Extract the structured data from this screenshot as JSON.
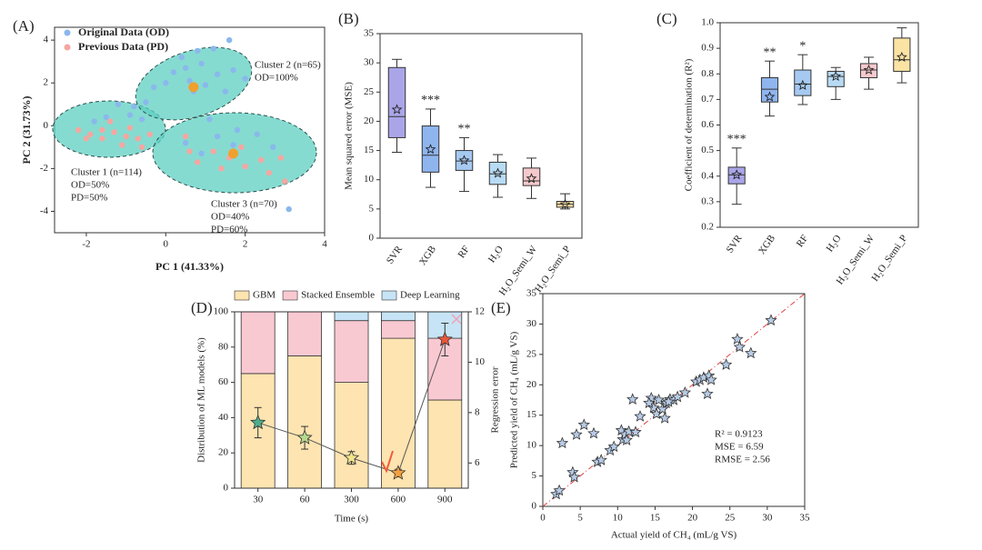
{
  "chart_data": [
    {
      "type": "scatter",
      "panel_label": "(A)",
      "xlabel": "PC 1 (41.33%)",
      "ylabel": "PC 2 (31.73%)",
      "xlim": [
        -2.8,
        4
      ],
      "ylim": [
        -5,
        4.6
      ],
      "xticks": [
        -2,
        0,
        2,
        4
      ],
      "yticks": [
        -4,
        -2,
        0,
        2,
        4
      ],
      "series": [
        {
          "name": "Original Data (OD)",
          "color": "#8ab8ec",
          "x": [
            0.4,
            0.8,
            1.2,
            1.6,
            0.2,
            0.5,
            0.9,
            1.3,
            1.7,
            2.0,
            -0.3,
            0.0,
            0.6,
            1.0,
            1.5,
            -0.8,
            -0.5,
            -1.2,
            -0.9,
            -1.5,
            -0.6,
            -1.8,
            0.5,
            0.9,
            1.3,
            1.8,
            2.3,
            2.7,
            1.1,
            3.1,
            1.7,
            0.7
          ],
          "y": [
            3.2,
            3.5,
            3.6,
            4.0,
            2.5,
            2.7,
            2.9,
            2.4,
            2.6,
            2.2,
            1.8,
            2.0,
            2.1,
            1.9,
            1.6,
            0.9,
            1.1,
            1.0,
            0.5,
            0.4,
            0.3,
            0.2,
            -0.8,
            -1.3,
            -0.5,
            -0.2,
            -0.4,
            -1.0,
            0.3,
            -3.9,
            -0.9,
            1.6
          ]
        },
        {
          "name": "Previous Data (PD)",
          "color": "#f4a7a0",
          "x": [
            -2.2,
            -1.9,
            -1.6,
            -1.3,
            -1.0,
            -0.7,
            -0.4,
            -1.4,
            -1.1,
            -1.6,
            -0.6,
            0.5,
            0.8,
            1.2,
            1.6,
            2.0,
            2.4,
            2.9,
            3.0,
            1.4,
            1.9,
            0.6,
            2.6,
            -0.9,
            -2.0
          ],
          "y": [
            -0.2,
            -0.4,
            -0.6,
            -0.3,
            -0.5,
            -0.6,
            -0.4,
            0.2,
            -0.9,
            -0.2,
            -1.0,
            -0.5,
            -1.7,
            -1.2,
            -1.5,
            -1.9,
            -1.6,
            -1.5,
            -2.6,
            -2.0,
            -1.0,
            -1.2,
            -2.2,
            -0.1,
            -0.6
          ]
        }
      ],
      "centroids": {
        "color": "#f0a030",
        "x": [
          0.7,
          1.7
        ],
        "y": [
          1.8,
          -1.3
        ]
      },
      "annotations": [
        [
          "Cluster 2 (n=65)",
          "OD=100%"
        ],
        [
          "Cluster 1 (n=114)",
          "OD=50%",
          "PD=50%"
        ],
        [
          "Cluster 3 (n=70)",
          "OD=40%",
          "PD=60%"
        ]
      ]
    },
    {
      "type": "box",
      "panel_label": "(B)",
      "ylabel": "Mean squared error (MSE)",
      "categories": [
        "SVR",
        "XGB",
        "RF",
        "H₂O",
        "H₂O_Semi_W",
        "H₂O_Semi_P"
      ],
      "colors": [
        "#aaa5e8",
        "#8fb5ef",
        "#a6c9f1",
        "#b8dbf4",
        "#f6c9cc",
        "#fbe3a4"
      ],
      "min": [
        14.7,
        8.7,
        8.0,
        7.0,
        6.8,
        5.0
      ],
      "q1": [
        17.2,
        11.3,
        11.6,
        9.2,
        9.0,
        5.3
      ],
      "median": [
        20.8,
        14.2,
        13.2,
        11.0,
        9.8,
        5.8
      ],
      "q3": [
        29.2,
        19.2,
        15.0,
        13.0,
        12.0,
        6.3
      ],
      "max": [
        30.6,
        22.1,
        17.2,
        14.3,
        13.7,
        7.6
      ],
      "mean": [
        22.0,
        15.2,
        13.3,
        11.1,
        10.2,
        5.8
      ],
      "significance": [
        null,
        "***",
        "**",
        null,
        null,
        null
      ],
      "ylim": [
        0,
        35
      ],
      "yticks": [
        0,
        5,
        10,
        15,
        20,
        25,
        30,
        35
      ]
    },
    {
      "type": "box",
      "panel_label": "(C)",
      "ylabel": "Coefficient of determination (R²)",
      "categories": [
        "SVR",
        "XGB",
        "RF",
        "H₂O",
        "H₂O_Semi_W",
        "H₂O_Semi_P"
      ],
      "colors": [
        "#aaa5e8",
        "#8fb5ef",
        "#a6c9f1",
        "#b8dbf4",
        "#f6c9cc",
        "#fbe3a4"
      ],
      "min": [
        0.29,
        0.635,
        0.68,
        0.7,
        0.74,
        0.765
      ],
      "q1": [
        0.37,
        0.69,
        0.715,
        0.75,
        0.785,
        0.81
      ],
      "median": [
        0.405,
        0.74,
        0.76,
        0.79,
        0.815,
        0.855
      ],
      "q3": [
        0.435,
        0.785,
        0.815,
        0.81,
        0.84,
        0.94
      ],
      "max": [
        0.51,
        0.85,
        0.875,
        0.825,
        0.865,
        0.98
      ],
      "mean": [
        0.405,
        0.71,
        0.755,
        0.79,
        0.815,
        0.865
      ],
      "significance": [
        "***",
        "**",
        "*",
        null,
        null,
        null
      ],
      "ylim": [
        0.2,
        1.0
      ],
      "yticks": [
        0.2,
        0.3,
        0.4,
        0.5,
        0.6,
        0.7,
        0.8,
        0.9,
        {
          "value": 1.0,
          "label": "1.0"
        }
      ]
    },
    {
      "type": "stacked-bar",
      "panel_label": "(D)",
      "xlabel": "Time (s)",
      "ylabel": "Distribution of ML models (%)",
      "y2label": "Regression error",
      "categories": [
        "30",
        "60",
        "300",
        "600",
        "900"
      ],
      "series": [
        {
          "name": "GBM",
          "color": "#fde4b0",
          "values": [
            65,
            75,
            60,
            85,
            50
          ]
        },
        {
          "name": "Stacked Ensemble",
          "color": "#f9c9d2",
          "values": [
            35,
            25,
            35,
            10,
            35
          ]
        },
        {
          "name": "Deep Learning",
          "color": "#c6e4f5",
          "values": [
            0,
            0,
            5,
            5,
            15
          ]
        }
      ],
      "line": {
        "axis": "y2",
        "values": [
          7.6,
          7.0,
          6.2,
          5.6,
          10.9
        ],
        "errors": [
          0.6,
          0.45,
          0.25,
          0.15,
          0.65
        ],
        "colors": [
          "#4fae8e",
          "#b6da8c",
          "#f1e48c",
          "#f4a040",
          "#e8553a"
        ]
      },
      "ylim": [
        0,
        100
      ],
      "yticks": [
        0,
        20,
        40,
        60,
        80,
        100
      ],
      "y2lim": [
        5,
        12
      ],
      "y2ticks": [
        6,
        8,
        10,
        12
      ]
    },
    {
      "type": "scatter",
      "panel_label": "(E)",
      "xlabel": "Actual yield of CH₄ (mL/g VS)",
      "ylabel": "Predicted yield of CH₄ (mL/g VS)",
      "color": "#b7cbe6",
      "x": [
        1.8,
        2.2,
        2.6,
        4.0,
        4.2,
        4.5,
        5.5,
        6.8,
        7.3,
        7.8,
        9.0,
        9.5,
        10.5,
        10.7,
        11.0,
        11.2,
        11.5,
        12.0,
        12.4,
        13.0,
        14.5,
        14.8,
        15.2,
        15.5,
        16.0,
        16.3,
        16.5,
        17.0,
        17.5,
        18.0,
        19.0,
        20.5,
        21.0,
        21.5,
        22.0,
        22.2,
        22.5,
        24.5,
        26.0,
        26.3,
        27.8,
        30.5,
        16.8,
        14.2
      ],
      "y": [
        2.0,
        2.6,
        10.4,
        5.6,
        4.8,
        11.8,
        13.4,
        12.0,
        7.3,
        7.6,
        9.2,
        9.8,
        12.5,
        11.0,
        11.8,
        10.9,
        12.3,
        17.6,
        12.2,
        14.8,
        17.8,
        16.2,
        15.2,
        17.5,
        16.0,
        14.5,
        17.0,
        17.6,
        17.5,
        18.0,
        18.7,
        20.5,
        20.8,
        21.2,
        18.5,
        21.5,
        20.8,
        23.3,
        27.5,
        26.2,
        25.2,
        30.6,
        17.2,
        17.0
      ],
      "xlim": [
        0,
        35
      ],
      "ylim": [
        0,
        35
      ],
      "xticks": [
        0,
        5,
        10,
        15,
        20,
        25,
        30,
        35
      ],
      "yticks": [
        0,
        5,
        10,
        15,
        20,
        25,
        30,
        35
      ],
      "annotations": [
        "R² = 0.9123",
        "MSE = 6.59",
        "RMSE = 2.56"
      ]
    }
  ]
}
